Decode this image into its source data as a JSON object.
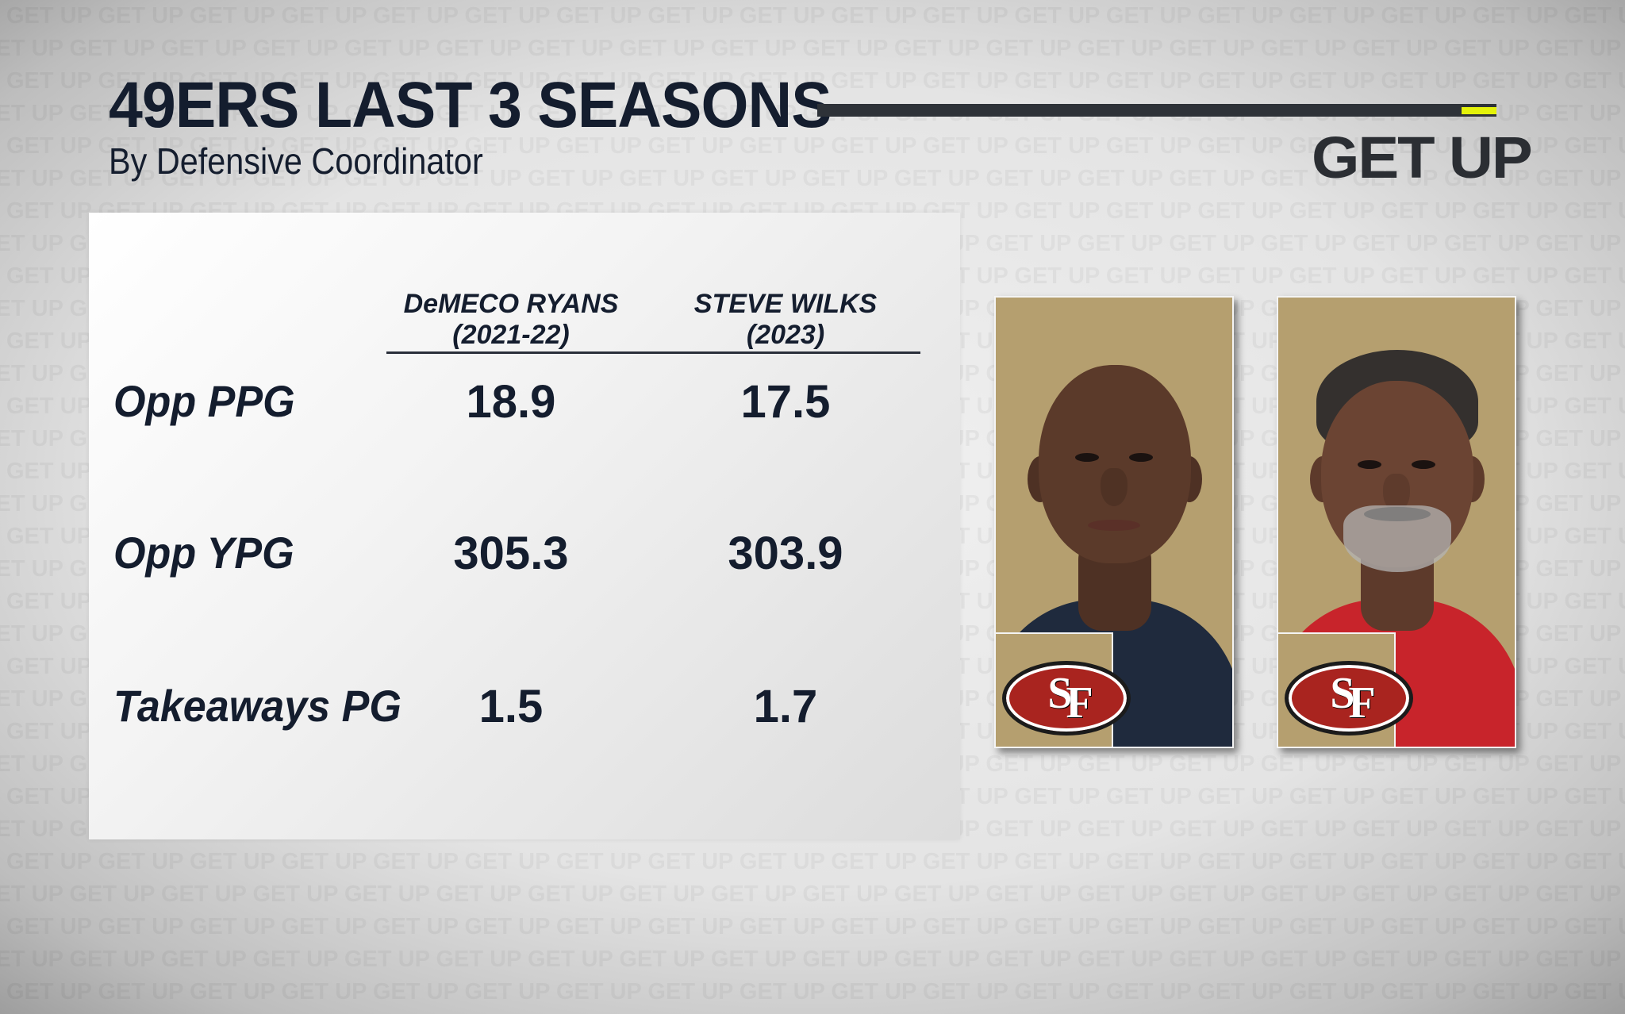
{
  "background": {
    "pattern_text": "GET UP"
  },
  "header": {
    "title": "49ERS LAST 3 SEASONS",
    "subtitle": "By Defensive Coordinator",
    "brand": "GET UP",
    "accent_color": "#e4f20a"
  },
  "table": {
    "columns": [
      {
        "name": "DeMECO RYANS",
        "years": "(2021-22)"
      },
      {
        "name": "STEVE WILKS",
        "years": "(2023)"
      }
    ],
    "rows": [
      {
        "label": "Opp PPG",
        "values": [
          "18.9",
          "17.5"
        ]
      },
      {
        "label": "Opp YPG",
        "values": [
          "305.3",
          "303.9"
        ]
      },
      {
        "label": "Takeaways PG",
        "values": [
          "1.5",
          "1.7"
        ]
      }
    ]
  },
  "photos": {
    "background_color": "#b59f6f",
    "team_logo_icon": "49ers-sf-logo-icon",
    "ryans": {
      "shirt_color": "#1f2a3d",
      "skin_color": "#5b3a2a"
    },
    "wilks": {
      "shirt_color": "#c8242b",
      "skin_color": "#6b4433"
    }
  }
}
